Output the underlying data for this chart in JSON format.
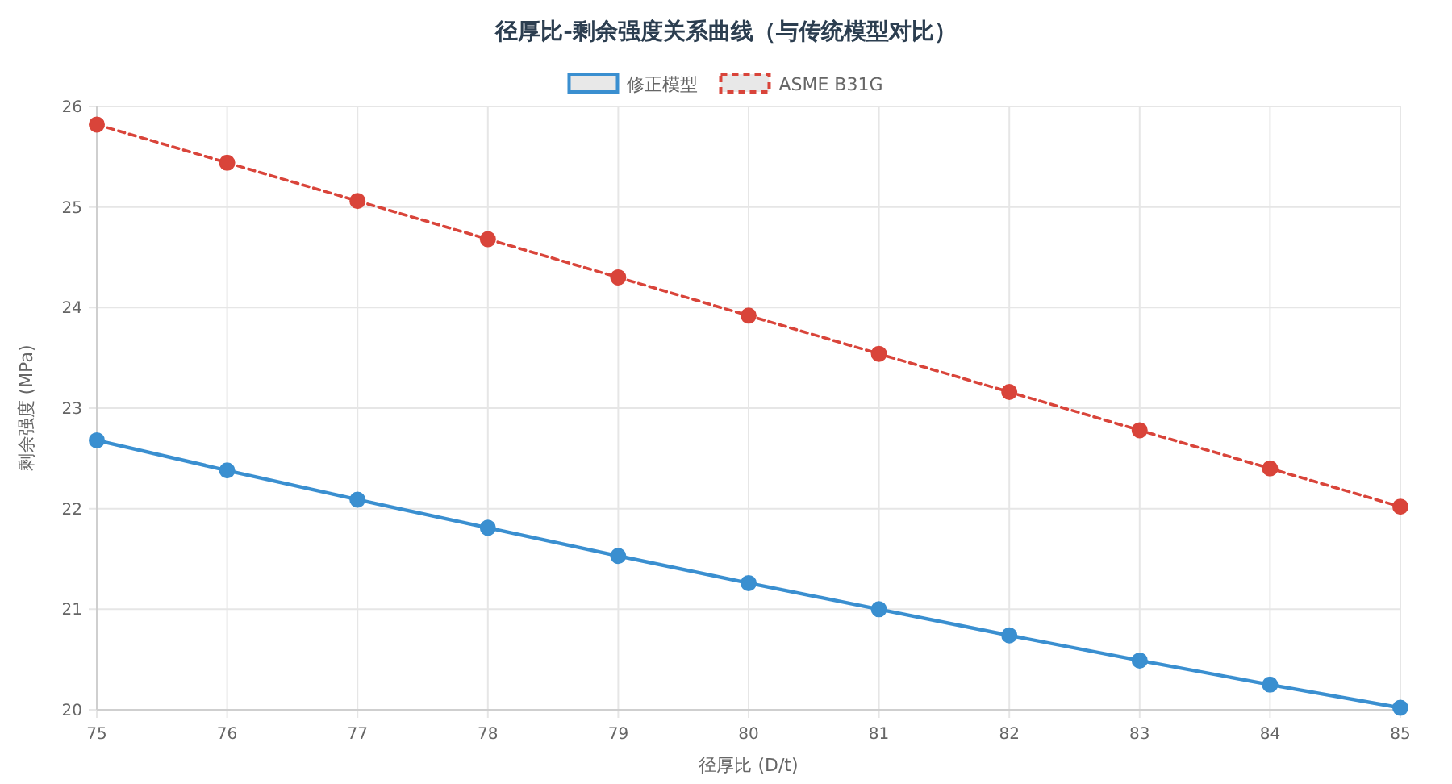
{
  "chart_data": {
    "type": "line",
    "title": "径厚比-剩余强度关系曲线（与传统模型对比）",
    "xlabel": "径厚比 (D/t)",
    "ylabel": "剩余强度 (MPa)",
    "x": [
      75,
      76,
      77,
      78,
      79,
      80,
      81,
      82,
      83,
      84,
      85
    ],
    "xlim": [
      75,
      85
    ],
    "xticks": [
      75,
      76,
      77,
      78,
      79,
      80,
      81,
      82,
      83,
      84,
      85
    ],
    "ylim": [
      20,
      26
    ],
    "yticks": [
      20,
      21,
      22,
      23,
      24,
      25,
      26
    ],
    "grid": true,
    "legend": "top",
    "marker": "circle",
    "series": [
      {
        "name": "修正模型",
        "color": "#3a8fd0",
        "line_style": "solid",
        "values": [
          22.68,
          22.38,
          22.09,
          21.81,
          21.53,
          21.26,
          21.0,
          20.74,
          20.49,
          20.25,
          20.02
        ]
      },
      {
        "name": "ASME B31G",
        "color": "#d9443a",
        "line_style": "dashed",
        "values": [
          25.82,
          25.44,
          25.06,
          24.68,
          24.3,
          23.92,
          23.54,
          23.16,
          22.78,
          22.4,
          22.02
        ]
      }
    ]
  }
}
